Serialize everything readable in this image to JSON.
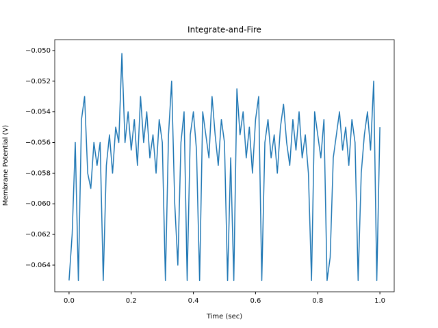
{
  "chart_data": {
    "type": "line",
    "title": "Integrate-and-Fire",
    "xlabel": "Time (sec)",
    "ylabel": "Membrane Potential (V)",
    "x": [
      0,
      0.01,
      0.02,
      0.03,
      0.04,
      0.05,
      0.06,
      0.07,
      0.08,
      0.09,
      0.1,
      0.11,
      0.12,
      0.13,
      0.14,
      0.15,
      0.16,
      0.17,
      0.18,
      0.19,
      0.2,
      0.21,
      0.22,
      0.23,
      0.24,
      0.25,
      0.26,
      0.27,
      0.28,
      0.29,
      0.3,
      0.31,
      0.32,
      0.33,
      0.34,
      0.35,
      0.36,
      0.37,
      0.38,
      0.39,
      0.4,
      0.41,
      0.42,
      0.43,
      0.44,
      0.45,
      0.46,
      0.47,
      0.48,
      0.49,
      0.5,
      0.51,
      0.52,
      0.53,
      0.54,
      0.55,
      0.56,
      0.57,
      0.58,
      0.59,
      0.6,
      0.61,
      0.62,
      0.63,
      0.64,
      0.65,
      0.66,
      0.67,
      0.68,
      0.69,
      0.7,
      0.71,
      0.72,
      0.73,
      0.74,
      0.75,
      0.76,
      0.77,
      0.78,
      0.79,
      0.8,
      0.81,
      0.82,
      0.83,
      0.84,
      0.85,
      0.86,
      0.87,
      0.88,
      0.89,
      0.9,
      0.91,
      0.92,
      0.93,
      0.94,
      0.95,
      0.96,
      0.97,
      0.98,
      0.99,
      1
    ],
    "series": [
      {
        "color": "#1f77b4",
        "values": [
          -0.065,
          -0.062,
          -0.056,
          -0.065,
          -0.0545,
          -0.053,
          -0.058,
          -0.059,
          -0.056,
          -0.0575,
          -0.056,
          -0.065,
          -0.0575,
          -0.0555,
          -0.058,
          -0.055,
          -0.056,
          -0.0502,
          -0.056,
          -0.054,
          -0.0565,
          -0.0545,
          -0.0575,
          -0.053,
          -0.056,
          -0.054,
          -0.057,
          -0.0555,
          -0.058,
          -0.0545,
          -0.056,
          -0.065,
          -0.0555,
          -0.052,
          -0.06,
          -0.064,
          -0.056,
          -0.054,
          -0.065,
          -0.0555,
          -0.054,
          -0.0565,
          -0.065,
          -0.054,
          -0.0555,
          -0.057,
          -0.053,
          -0.0555,
          -0.0575,
          -0.0545,
          -0.056,
          -0.065,
          -0.057,
          -0.065,
          -0.0525,
          -0.0555,
          -0.054,
          -0.057,
          -0.055,
          -0.058,
          -0.0545,
          -0.053,
          -0.065,
          -0.056,
          -0.0545,
          -0.057,
          -0.0555,
          -0.058,
          -0.055,
          -0.0535,
          -0.056,
          -0.0575,
          -0.0545,
          -0.0565,
          -0.054,
          -0.057,
          -0.0555,
          -0.058,
          -0.065,
          -0.054,
          -0.0555,
          -0.057,
          -0.0545,
          -0.065,
          -0.0635,
          -0.057,
          -0.0555,
          -0.054,
          -0.0565,
          -0.055,
          -0.0575,
          -0.0545,
          -0.056,
          -0.065,
          -0.058,
          -0.0555,
          -0.054,
          -0.0565,
          -0.052,
          -0.065,
          -0.055
        ]
      }
    ],
    "xlim": [
      -0.046,
      1.046
    ],
    "ylim": [
      -0.06574,
      -0.04929
    ],
    "xticks": [
      {
        "value": 0,
        "label": "0.0"
      },
      {
        "value": 0.2,
        "label": "0.2"
      },
      {
        "value": 0.4,
        "label": "0.4"
      },
      {
        "value": 0.6,
        "label": "0.6"
      },
      {
        "value": 0.8,
        "label": "0.8"
      },
      {
        "value": 1,
        "label": "1.0"
      }
    ],
    "yticks": [
      {
        "value": -0.064,
        "label": "−0.064"
      },
      {
        "value": -0.062,
        "label": "−0.062"
      },
      {
        "value": -0.06,
        "label": "−0.060"
      },
      {
        "value": -0.058,
        "label": "−0.058"
      },
      {
        "value": -0.056,
        "label": "−0.056"
      },
      {
        "value": -0.054,
        "label": "−0.054"
      },
      {
        "value": -0.052,
        "label": "−0.052"
      },
      {
        "value": -0.05,
        "label": "−0.050"
      }
    ]
  }
}
